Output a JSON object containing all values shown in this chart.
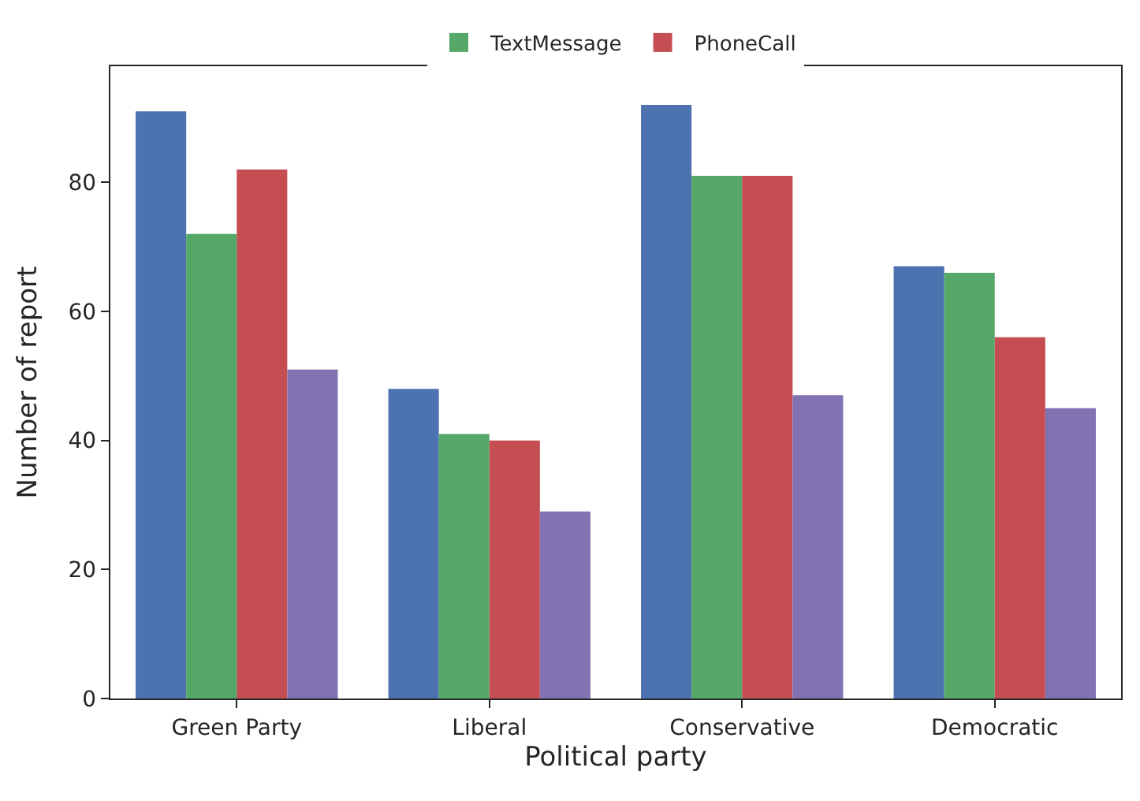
{
  "chart_data": {
    "type": "bar",
    "xlabel": "Political party",
    "ylabel": "Number of report",
    "categories": [
      "Green Party",
      "Liberal",
      "Conservative",
      "Democratic"
    ],
    "series": [
      {
        "color": "#4c72b0",
        "values": [
          91,
          48,
          92,
          67
        ]
      },
      {
        "name": "TextMessage",
        "color": "#55a868",
        "values": [
          72,
          41,
          81,
          66
        ]
      },
      {
        "name": "PhoneCall",
        "color": "#c44e52",
        "values": [
          82,
          40,
          81,
          56
        ]
      },
      {
        "color": "#8172b2",
        "values": [
          51,
          29,
          47,
          45
        ]
      }
    ],
    "ylim": [
      0,
      98
    ],
    "yticks": [
      0,
      20,
      40,
      60,
      80
    ],
    "legend": "top"
  }
}
